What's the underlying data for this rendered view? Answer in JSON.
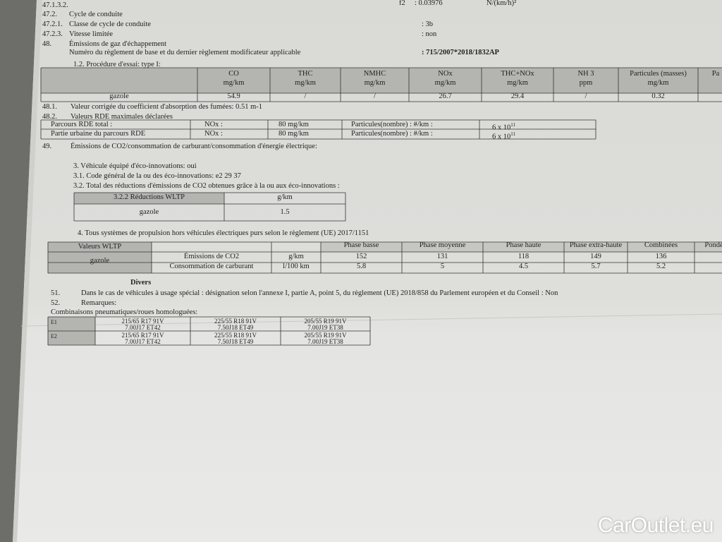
{
  "lines": [
    {
      "num": "47.1.3.2."
    },
    {
      "num": "47.2.",
      "text": "Cycle de conduite"
    },
    {
      "num": "47.2.1.",
      "text": "Classe de cycle de conduite",
      "value": ": 3b"
    },
    {
      "num": "47.2.3.",
      "text": "Vitesse limitée",
      "value": ": non"
    },
    {
      "num": "48.",
      "text": "Émissions de gaz d'échappement"
    },
    {
      "text": "Numéro du règlement de base et du dernier règlement modificateur applicable",
      "value": ": 715/2007*2018/1832AP"
    },
    {
      "text": "1.2. Procédure d'essai: type I:"
    }
  ],
  "f2": {
    "label": "f2",
    "value": ": 0.03976",
    "unit": "N/(km/h)²"
  },
  "emissions_table": {
    "headers": [
      [
        "CO",
        "mg/km"
      ],
      [
        "THC",
        "mg/km"
      ],
      [
        "NMHC",
        "mg/km"
      ],
      [
        "NOx",
        "mg/km"
      ],
      [
        "THC+NOx",
        "mg/km"
      ],
      [
        "NH 3",
        "ppm"
      ],
      [
        "Particules (masses)",
        "mg/km"
      ],
      [
        "Pa"
      ]
    ],
    "row": [
      "gazole",
      "54.9",
      "/",
      "/",
      "26.7",
      "29.4",
      "/",
      "0.32"
    ]
  },
  "lines2": [
    {
      "num": "48.1.",
      "text": "Valeur corrigée du coefficient d'absorption des fumées: 0.51 m-1"
    },
    {
      "num": "48.2.",
      "text": "Valeurs RDE maximales déclarées"
    }
  ],
  "rde_table": [
    {
      "cells": [
        "Parcours RDE total :",
        "NOx :",
        "80 mg/km",
        "Particules(nombre) : #/km :"
      ],
      "count": "6 x 10",
      "exp": "11"
    },
    {
      "cells": [
        "Partie urbaine du parcours RDE",
        "NOx :",
        "80 mg/km",
        "Particules(nombre) : #/km :"
      ],
      "count": "6 x 10",
      "exp": "11"
    }
  ],
  "lines3": [
    {
      "num": "49.",
      "text": "Émissions de CO2/consommation de carburant/consommation d'énergie électrique:"
    },
    {
      "text": "3. Véhicule équipé d'éco-innovations: oui"
    },
    {
      "text": "3.1. Code général de la ou des éco-innovations: e2 29 37"
    },
    {
      "text": "3.2. Total des réductions d'émissions de CO2 obtenues grâce à la ou aux éco-innovations :"
    }
  ],
  "eco_table": {
    "header": [
      "3.2.2 Réductions WLTP",
      "g/km"
    ],
    "row": [
      "gazole",
      "1.5"
    ]
  },
  "section4": "4. Tous systèmes de propulsion hors véhicules électriques purs selon le règlement (UE) 2017/1151",
  "wltp_table": {
    "label": "Valeurs WLTP",
    "phases": [
      "Phase basse",
      "Phase moyenne",
      "Phase haute",
      "Phase extra-haute",
      "Combinées",
      "Pondé"
    ],
    "rows": [
      {
        "fuel": "gazole",
        "name": "Émissions de CO2",
        "unit": "g/km",
        "values": [
          "152",
          "131",
          "118",
          "149",
          "136"
        ]
      },
      {
        "name": "Consommation de carburant",
        "unit": "l/100 km",
        "values": [
          "5.8",
          "5",
          "4.5",
          "5.7",
          "5.2"
        ]
      }
    ]
  },
  "divers": "Divers",
  "lines4": [
    {
      "num": "51.",
      "text": "Dans le cas de véhicules à usage spécial : désignation selon l'annexe I, partie A, point 5, du règlement (UE) 2018/858 du Parlement européen et du Conseil : Non"
    },
    {
      "num": "52.",
      "text": "Remarques:"
    },
    {
      "text": "Combinaisons pneumatiques/roues homologuées:"
    }
  ],
  "tyre_table": [
    {
      "id": "E1",
      "sizes": [
        [
          "215/65 R17 91V",
          "7.00J17 ET42"
        ],
        [
          "225/55 R18 91V",
          "7.50J18 ET49"
        ],
        [
          "205/55 R19 91V",
          "7.00J19 ET38"
        ]
      ]
    },
    {
      "id": "E2",
      "sizes": [
        [
          "215/65 R17 91V",
          "7.00J17 ET42"
        ],
        [
          "225/55 R18 91V",
          "7.50J18 ET49"
        ],
        [
          "205/55 R19 91V",
          "7.00J19 ET38"
        ]
      ]
    }
  ],
  "watermark": "CarOutlet.eu"
}
